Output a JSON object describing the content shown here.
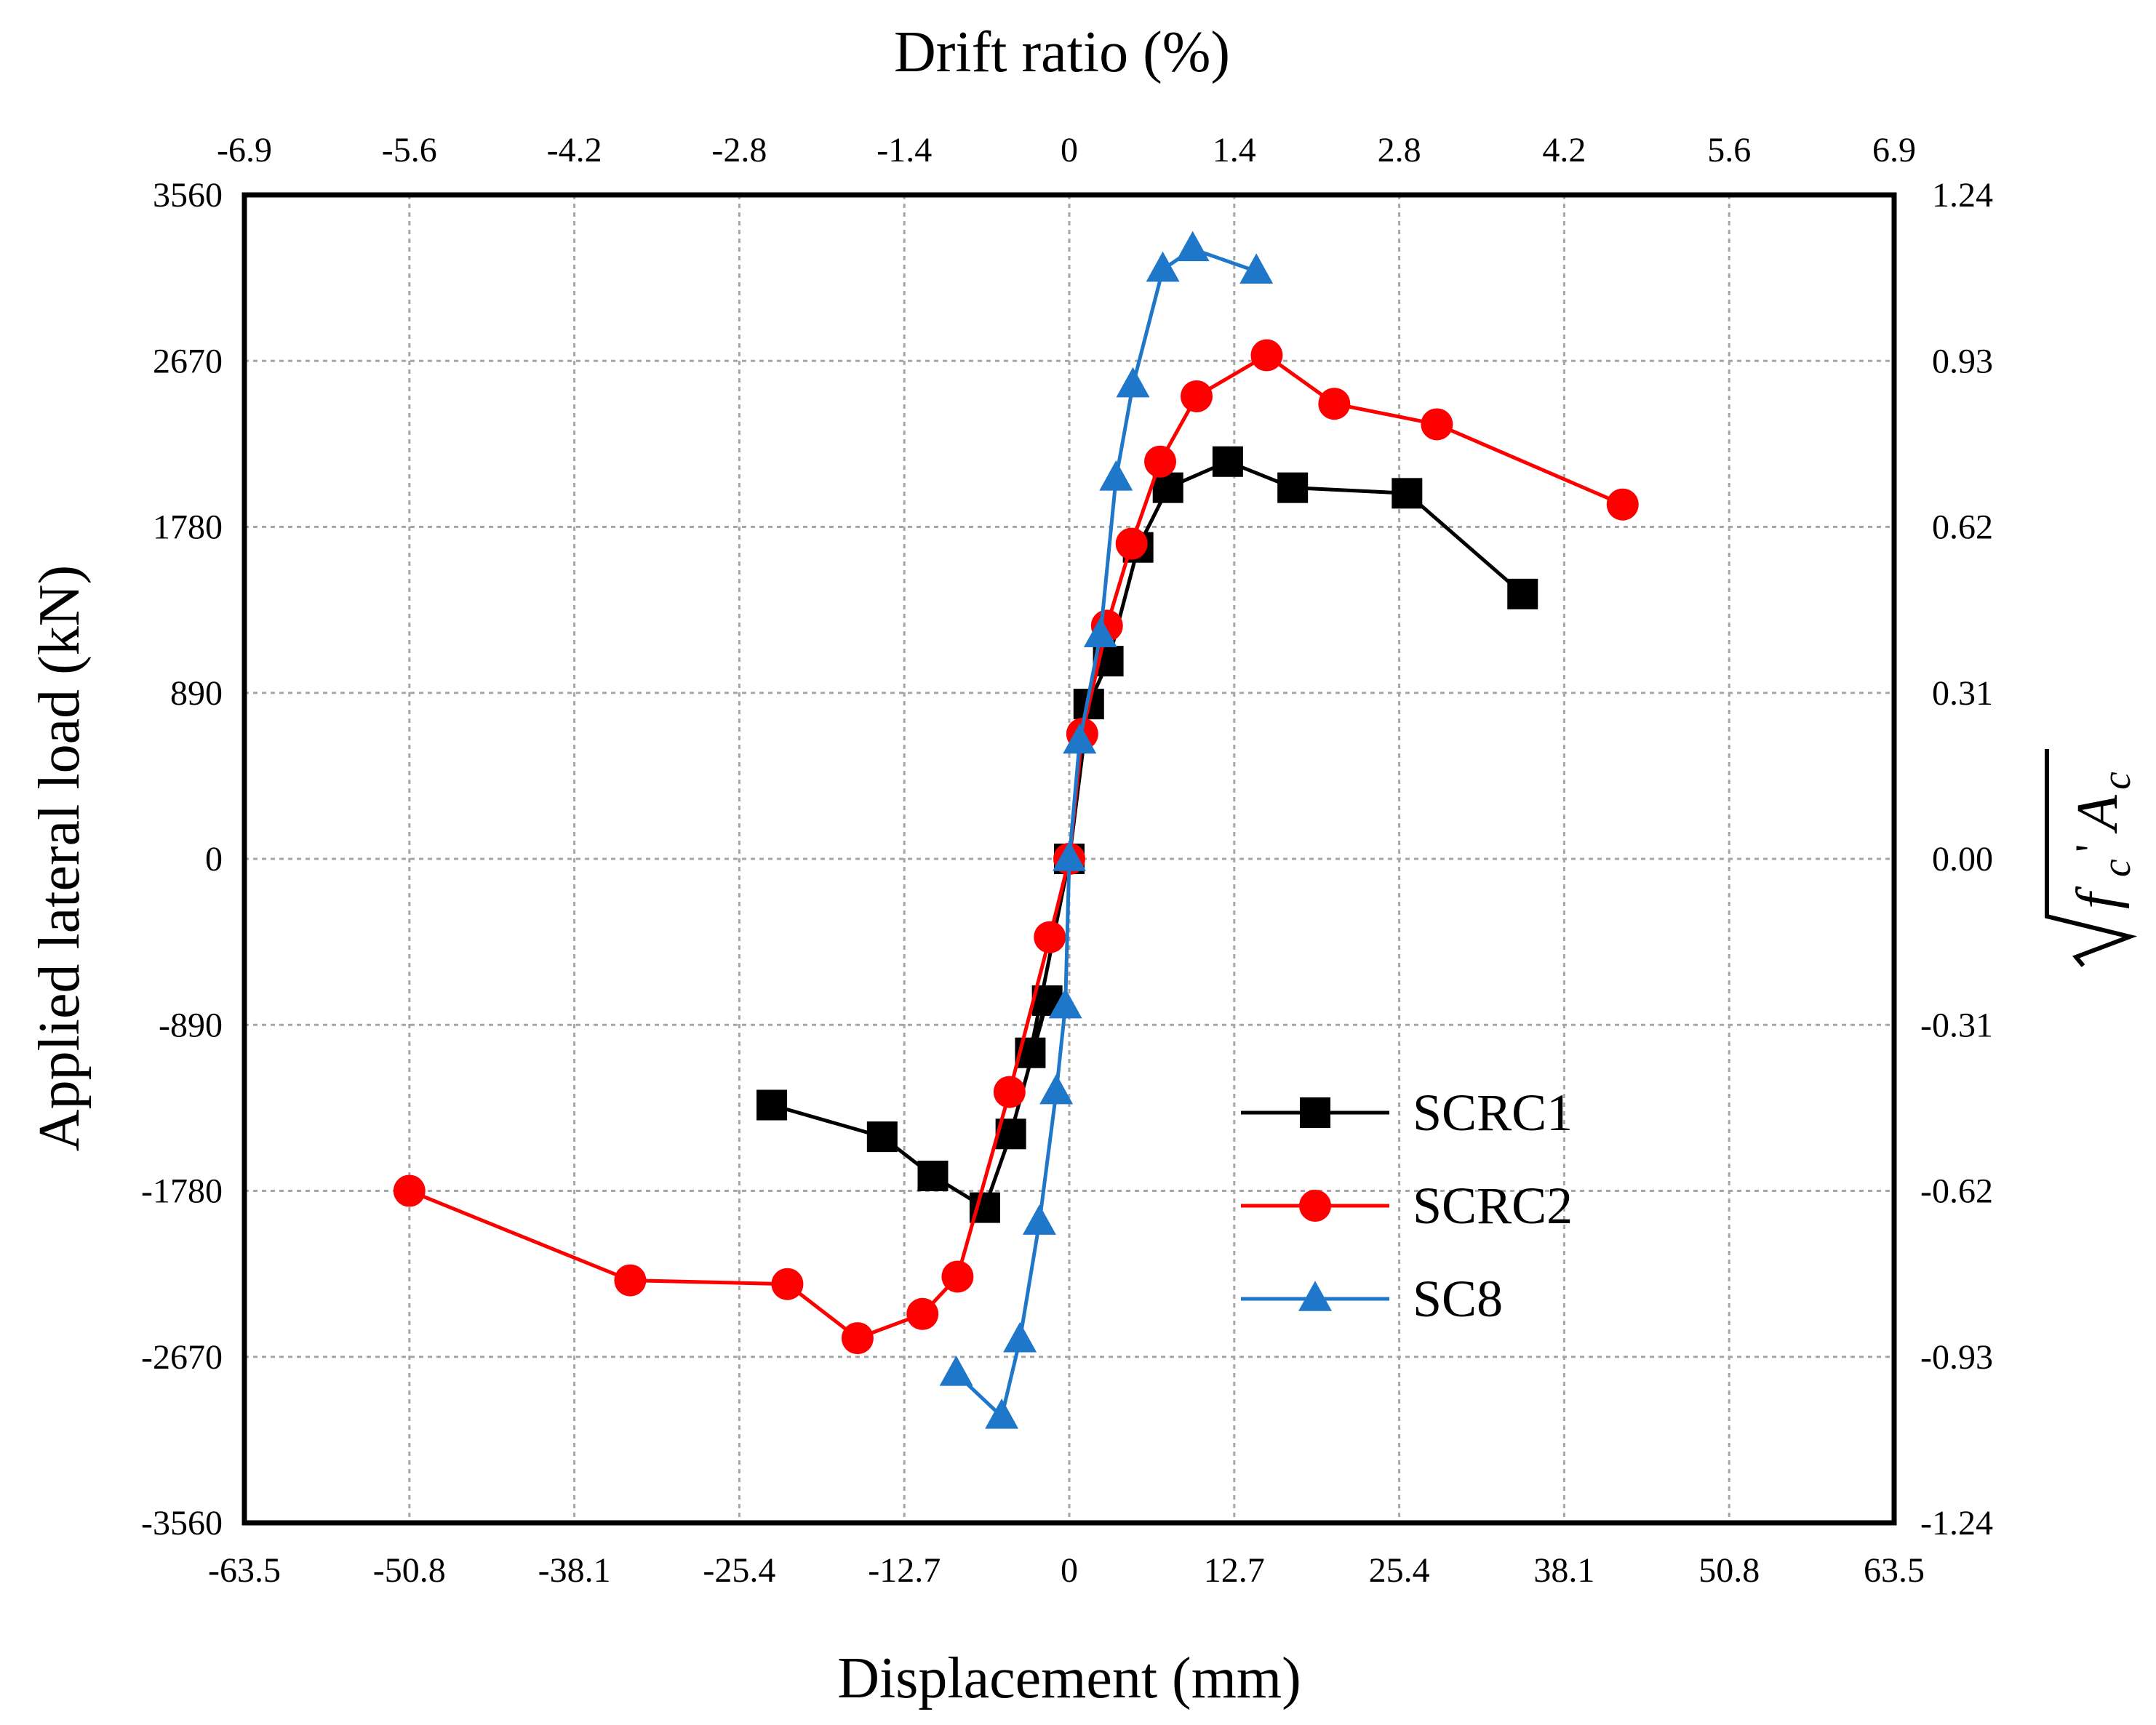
{
  "chart_data": {
    "type": "line",
    "title": "",
    "xlabel": "Displacement (mm)",
    "x2label": "Drift ratio (%)",
    "ylabel": "Applied lateral load (kN)",
    "y2label_parts": {
      "main": "f",
      "sub": "c",
      "prime": "'",
      "tail": "A",
      "tail_sub": "c"
    },
    "xlim": [
      -63.5,
      63.5
    ],
    "ylim": [
      -3560,
      3560
    ],
    "x_ticks": [
      "-63.5",
      "-50.8",
      "-38.1",
      "-25.4",
      "-12.7",
      "0",
      "12.7",
      "25.4",
      "38.1",
      "50.8",
      "63.5"
    ],
    "x2_ticks": [
      "-6.9",
      "-5.6",
      "-4.2",
      "-2.8",
      "-1.4",
      "0",
      "1.4",
      "2.8",
      "4.2",
      "5.6",
      "6.9"
    ],
    "y_ticks": [
      "3560",
      "2670",
      "1780",
      "890",
      "0",
      "-890",
      "-1780",
      "-2670",
      "-3560"
    ],
    "y2_ticks": [
      "1.24",
      "0.93",
      "0.62",
      "0.31",
      "0.00",
      "-0.31",
      "-0.62",
      "-0.93",
      "-1.24"
    ],
    "grid": true,
    "legend_position": "center-right",
    "series": [
      {
        "name": "SCRC1",
        "color": "#000000",
        "marker": "square",
        "points": [
          [
            -22.9,
            -1320
          ],
          [
            -14.4,
            -1490
          ],
          [
            -10.5,
            -1700
          ],
          [
            -6.5,
            -1870
          ],
          [
            -4.5,
            -1475
          ],
          [
            -1.7,
            -760
          ],
          [
            -3.0,
            -1040
          ],
          [
            0,
            0
          ],
          [
            1.5,
            830
          ],
          [
            3.0,
            1060
          ],
          [
            5.3,
            1670
          ],
          [
            7.6,
            1990
          ],
          [
            12.2,
            2130
          ],
          [
            17.2,
            1990
          ],
          [
            26.0,
            1960
          ],
          [
            34.9,
            1420
          ]
        ]
      },
      {
        "name": "SCRC2",
        "color": "#ff0000",
        "marker": "circle",
        "points": [
          [
            -50.8,
            -1780
          ],
          [
            -33.8,
            -2260
          ],
          [
            -21.7,
            -2280
          ],
          [
            -16.3,
            -2570
          ],
          [
            -11.3,
            -2440
          ],
          [
            -8.6,
            -2240
          ],
          [
            -4.6,
            -1250
          ],
          [
            -1.5,
            -420
          ],
          [
            0,
            0
          ],
          [
            1.0,
            670
          ],
          [
            2.9,
            1250
          ],
          [
            4.8,
            1690
          ],
          [
            7.0,
            2130
          ],
          [
            9.8,
            2480
          ],
          [
            15.2,
            2700
          ],
          [
            20.4,
            2440
          ],
          [
            28.3,
            2330
          ],
          [
            42.6,
            1900
          ]
        ]
      },
      {
        "name": "SC8",
        "color": "#1f77c9",
        "marker": "triangle",
        "points": [
          [
            -8.7,
            -2760
          ],
          [
            -5.2,
            -2990
          ],
          [
            -3.8,
            -2580
          ],
          [
            -2.3,
            -1950
          ],
          [
            -1.0,
            -1250
          ],
          [
            -0.3,
            -790
          ],
          [
            0,
            0
          ],
          [
            0.8,
            630
          ],
          [
            2.4,
            1200
          ],
          [
            3.6,
            2040
          ],
          [
            4.9,
            2540
          ],
          [
            7.2,
            3160
          ],
          [
            9.5,
            3270
          ],
          [
            14.4,
            3150
          ]
        ]
      }
    ]
  }
}
